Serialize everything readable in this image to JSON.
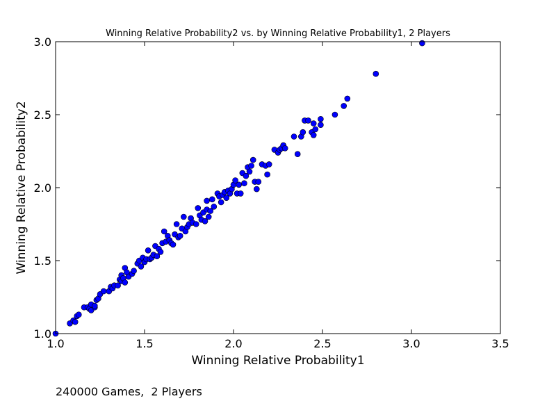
{
  "chart_data": {
    "type": "scatter",
    "title": "Winning Relative Probability2 vs. by Winning Relative Probability1, 2 Players",
    "xlabel": "Winning Relative Probability1",
    "ylabel": "Winning Relative Probability2",
    "xlim": [
      1.0,
      3.5
    ],
    "ylim": [
      1.0,
      3.0
    ],
    "xticks": [
      "1.0",
      "1.5",
      "2.0",
      "2.5",
      "3.0",
      "3.5"
    ],
    "yticks": [
      "1.0",
      "1.5",
      "2.0",
      "2.5",
      "3.0"
    ],
    "grid": false,
    "marker_color": "#0000ff",
    "marker_edge": "#000000",
    "series": [
      {
        "points": [
          [
            1.0,
            1.0
          ],
          [
            1.08,
            1.07
          ],
          [
            1.1,
            1.09
          ],
          [
            1.11,
            1.08
          ],
          [
            1.12,
            1.12
          ],
          [
            1.13,
            1.13
          ],
          [
            1.16,
            1.18
          ],
          [
            1.18,
            1.18
          ],
          [
            1.19,
            1.17
          ],
          [
            1.2,
            1.2
          ],
          [
            1.2,
            1.16
          ],
          [
            1.22,
            1.18
          ],
          [
            1.22,
            1.19
          ],
          [
            1.23,
            1.23
          ],
          [
            1.24,
            1.24
          ],
          [
            1.25,
            1.27
          ],
          [
            1.27,
            1.29
          ],
          [
            1.3,
            1.29
          ],
          [
            1.31,
            1.32
          ],
          [
            1.32,
            1.31
          ],
          [
            1.33,
            1.33
          ],
          [
            1.35,
            1.33
          ],
          [
            1.36,
            1.37
          ],
          [
            1.37,
            1.4
          ],
          [
            1.37,
            1.36
          ],
          [
            1.38,
            1.38
          ],
          [
            1.39,
            1.35
          ],
          [
            1.39,
            1.45
          ],
          [
            1.4,
            1.42
          ],
          [
            1.41,
            1.39
          ],
          [
            1.43,
            1.41
          ],
          [
            1.44,
            1.43
          ],
          [
            1.46,
            1.48
          ],
          [
            1.47,
            1.5
          ],
          [
            1.48,
            1.46
          ],
          [
            1.49,
            1.52
          ],
          [
            1.5,
            1.49
          ],
          [
            1.51,
            1.51
          ],
          [
            1.52,
            1.57
          ],
          [
            1.53,
            1.51
          ],
          [
            1.54,
            1.52
          ],
          [
            1.55,
            1.54
          ],
          [
            1.56,
            1.6
          ],
          [
            1.57,
            1.53
          ],
          [
            1.58,
            1.58
          ],
          [
            1.59,
            1.56
          ],
          [
            1.6,
            1.62
          ],
          [
            1.61,
            1.7
          ],
          [
            1.62,
            1.63
          ],
          [
            1.63,
            1.67
          ],
          [
            1.64,
            1.64
          ],
          [
            1.65,
            1.62
          ],
          [
            1.66,
            1.61
          ],
          [
            1.67,
            1.68
          ],
          [
            1.68,
            1.75
          ],
          [
            1.69,
            1.66
          ],
          [
            1.7,
            1.67
          ],
          [
            1.71,
            1.72
          ],
          [
            1.72,
            1.8
          ],
          [
            1.73,
            1.7
          ],
          [
            1.74,
            1.73
          ],
          [
            1.75,
            1.75
          ],
          [
            1.76,
            1.79
          ],
          [
            1.77,
            1.76
          ],
          [
            1.79,
            1.75
          ],
          [
            1.8,
            1.86
          ],
          [
            1.81,
            1.81
          ],
          [
            1.82,
            1.78
          ],
          [
            1.83,
            1.83
          ],
          [
            1.84,
            1.77
          ],
          [
            1.85,
            1.85
          ],
          [
            1.85,
            1.91
          ],
          [
            1.86,
            1.8
          ],
          [
            1.87,
            1.84
          ],
          [
            1.88,
            1.92
          ],
          [
            1.89,
            1.87
          ],
          [
            1.91,
            1.96
          ],
          [
            1.92,
            1.94
          ],
          [
            1.93,
            1.9
          ],
          [
            1.94,
            1.95
          ],
          [
            1.95,
            1.97
          ],
          [
            1.96,
            1.93
          ],
          [
            1.97,
            1.98
          ],
          [
            1.98,
            1.96
          ],
          [
            1.99,
            1.99
          ],
          [
            2.0,
            2.02
          ],
          [
            2.01,
            2.05
          ],
          [
            2.02,
            1.96
          ],
          [
            2.03,
            2.02
          ],
          [
            2.04,
            1.96
          ],
          [
            2.05,
            2.1
          ],
          [
            2.06,
            2.03
          ],
          [
            2.07,
            2.08
          ],
          [
            2.08,
            2.14
          ],
          [
            2.09,
            2.11
          ],
          [
            2.1,
            2.15
          ],
          [
            2.11,
            2.19
          ],
          [
            2.12,
            2.04
          ],
          [
            2.13,
            1.99
          ],
          [
            2.14,
            2.04
          ],
          [
            2.16,
            2.16
          ],
          [
            2.18,
            2.15
          ],
          [
            2.19,
            2.09
          ],
          [
            2.2,
            2.16
          ],
          [
            2.23,
            2.26
          ],
          [
            2.25,
            2.24
          ],
          [
            2.26,
            2.26
          ],
          [
            2.27,
            2.27
          ],
          [
            2.28,
            2.29
          ],
          [
            2.29,
            2.27
          ],
          [
            2.34,
            2.35
          ],
          [
            2.36,
            2.23
          ],
          [
            2.38,
            2.35
          ],
          [
            2.39,
            2.38
          ],
          [
            2.4,
            2.46
          ],
          [
            2.42,
            2.46
          ],
          [
            2.44,
            2.38
          ],
          [
            2.45,
            2.36
          ],
          [
            2.46,
            2.4
          ],
          [
            2.45,
            2.44
          ],
          [
            2.49,
            2.43
          ],
          [
            2.49,
            2.47
          ],
          [
            2.57,
            2.5
          ],
          [
            2.62,
            2.56
          ],
          [
            2.64,
            2.61
          ],
          [
            2.8,
            2.78
          ],
          [
            3.06,
            2.99
          ]
        ]
      }
    ]
  },
  "footnote": "240000 Games,  2 Players"
}
